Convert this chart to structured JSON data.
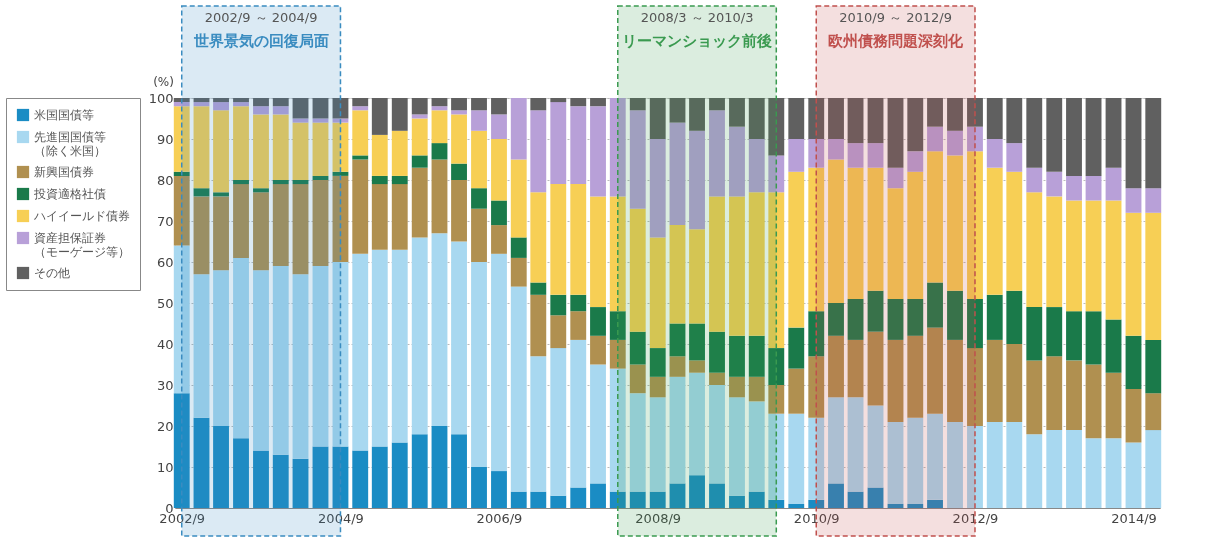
{
  "chart_data": {
    "type": "bar",
    "stacked": true,
    "ylabel": "(%)",
    "x": [
      "2002-09",
      "2002-12",
      "2003-03",
      "2003-06",
      "2003-09",
      "2003-12",
      "2004-03",
      "2004-06",
      "2004-09",
      "2004-12",
      "2005-03",
      "2005-06",
      "2005-09",
      "2005-12",
      "2006-03",
      "2006-06",
      "2006-09",
      "2006-12",
      "2007-03",
      "2007-06",
      "2007-09",
      "2007-12",
      "2008-03",
      "2008-06",
      "2008-09",
      "2008-12",
      "2009-03",
      "2009-06",
      "2009-09",
      "2009-12",
      "2010-03",
      "2010-06",
      "2010-09",
      "2010-12",
      "2011-03",
      "2011-06",
      "2011-09",
      "2011-12",
      "2012-03",
      "2012-06",
      "2012-09",
      "2012-12",
      "2013-03",
      "2013-06",
      "2013-09",
      "2013-12",
      "2014-03",
      "2014-06",
      "2014-09",
      "2014-12"
    ],
    "xlim": [
      "2002-08",
      "2015-01"
    ],
    "xticks": [
      {
        "value": "2002-09",
        "label": "2002/9"
      },
      {
        "value": "2004-09",
        "label": "2004/9"
      },
      {
        "value": "2006-09",
        "label": "2006/9"
      },
      {
        "value": "2008-09",
        "label": "2008/9"
      },
      {
        "value": "2010-09",
        "label": "2010/9"
      },
      {
        "value": "2012-09",
        "label": "2012/9"
      },
      {
        "value": "2014-09",
        "label": "2014/9"
      }
    ],
    "ylim": [
      0,
      100
    ],
    "yticks": [
      0,
      10,
      20,
      30,
      40,
      50,
      60,
      70,
      80,
      90,
      100
    ],
    "grid": "y",
    "legend": "left",
    "series": [
      {
        "name": "米国国債等",
        "color": "#1a8cc4",
        "values": [
          28,
          22,
          20,
          17,
          14,
          13,
          12,
          15,
          15,
          14,
          15,
          16,
          18,
          20,
          18,
          10,
          9,
          4,
          4,
          3,
          5,
          6,
          4,
          4,
          4,
          6,
          8,
          6,
          3,
          4,
          2,
          1,
          2,
          6,
          4,
          5,
          1,
          1,
          2,
          0,
          0,
          0,
          0,
          0,
          0,
          0,
          0,
          0,
          0,
          0
        ]
      },
      {
        "name": "先進国国債等（除く米国）",
        "color": "#a8d8f0",
        "values": [
          36,
          35,
          38,
          44,
          44,
          46,
          45,
          44,
          45,
          48,
          48,
          47,
          48,
          47,
          47,
          50,
          53,
          50,
          33,
          36,
          36,
          29,
          30,
          24,
          23,
          26,
          25,
          24,
          24,
          22,
          21,
          22,
          20,
          21,
          23,
          20,
          20,
          21,
          21,
          21,
          20,
          21,
          21,
          18,
          19,
          19,
          17,
          17,
          16,
          19
        ]
      },
      {
        "name": "新興国債券",
        "color": "#b09050",
        "values": [
          17,
          19,
          18,
          18,
          19,
          20,
          22,
          21,
          21,
          23,
          16,
          16,
          17,
          18,
          15,
          13,
          7,
          7,
          15,
          8,
          7,
          7,
          7,
          7,
          5,
          5,
          3,
          3,
          5,
          6,
          7,
          11,
          15,
          15,
          14,
          18,
          20,
          20,
          21,
          20,
          19,
          20,
          19,
          18,
          18,
          17,
          18,
          16,
          13,
          9
        ]
      },
      {
        "name": "投資適格社債",
        "color": "#1a7a4a",
        "values": [
          1,
          2,
          1,
          1,
          1,
          1,
          1,
          1,
          1,
          1,
          2,
          2,
          3,
          4,
          4,
          5,
          6,
          5,
          3,
          5,
          4,
          7,
          7,
          8,
          7,
          8,
          9,
          10,
          10,
          10,
          9,
          10,
          11,
          8,
          10,
          10,
          10,
          9,
          11,
          12,
          12,
          11,
          13,
          13,
          12,
          12,
          13,
          13,
          13,
          13
        ]
      },
      {
        "name": "ハイイールド債券",
        "color": "#f7cf55",
        "values": [
          16,
          20,
          20,
          18,
          18,
          16,
          14,
          13,
          12,
          11,
          10,
          11,
          9,
          8,
          12,
          14,
          15,
          19,
          22,
          27,
          27,
          27,
          28,
          30,
          27,
          24,
          23,
          33,
          34,
          35,
          38,
          38,
          35,
          35,
          32,
          30,
          27,
          31,
          32,
          33,
          36,
          31,
          29,
          28,
          27,
          27,
          27,
          29,
          30,
          31
        ]
      },
      {
        "name": "資産担保証券（モーゲージ等）",
        "color": "#b8a0d8",
        "values": [
          1,
          1,
          2,
          1,
          2,
          2,
          1,
          1,
          1,
          1,
          0,
          0,
          1,
          1,
          1,
          5,
          6,
          15,
          20,
          20,
          19,
          22,
          24,
          24,
          24,
          25,
          24,
          21,
          17,
          13,
          9,
          8,
          7,
          5,
          6,
          6,
          5,
          5,
          6,
          6,
          6,
          7,
          7,
          6,
          6,
          6,
          6,
          8,
          6,
          6
        ]
      },
      {
        "name": "その他",
        "color": "#606060",
        "values": [
          1,
          1,
          1,
          1,
          2,
          2,
          5,
          5,
          5,
          2,
          9,
          8,
          4,
          2,
          3,
          3,
          4,
          0,
          3,
          1,
          2,
          2,
          0,
          3,
          10,
          6,
          8,
          3,
          7,
          10,
          14,
          10,
          10,
          10,
          11,
          11,
          17,
          13,
          7,
          8,
          7,
          10,
          11,
          17,
          18,
          19,
          19,
          17,
          22,
          22
        ]
      }
    ],
    "bands": [
      {
        "axis": "x",
        "from": "2002-09",
        "to": "2004-09",
        "label": "2002/9 ～ 2004/9\n世界景気の回復局面",
        "color": "#3a8cc0"
      },
      {
        "axis": "x",
        "from": "2008-03",
        "to": "2010-03",
        "label": "2008/3 ～ 2010/3\nリーマンショック前後",
        "color": "#3a9a50"
      },
      {
        "axis": "x",
        "from": "2010-09",
        "to": "2012-09",
        "label": "2010/9 ～ 2012/9\n欧州債務問題深刻化",
        "color": "#c0504d"
      }
    ]
  }
}
